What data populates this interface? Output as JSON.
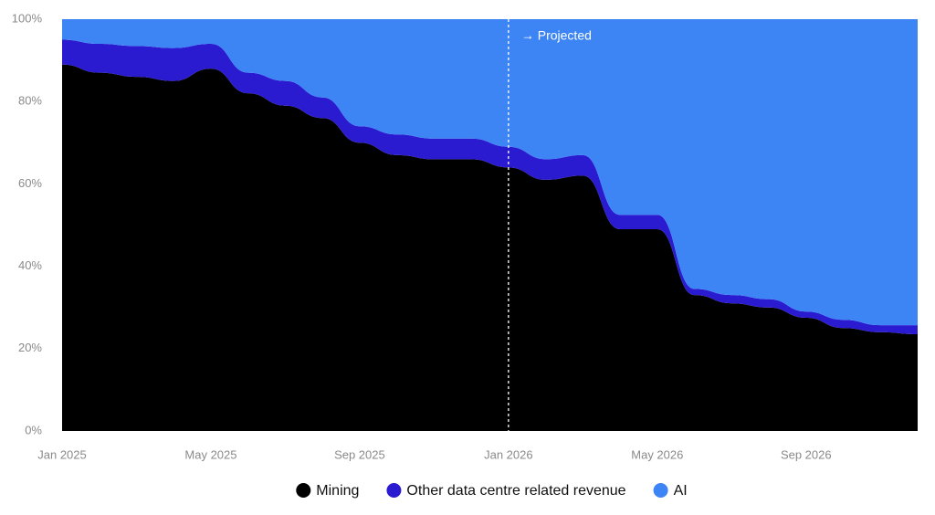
{
  "chart_data": {
    "type": "stacked_area",
    "categories": [
      "Jan 2025",
      null,
      null,
      null,
      "May 2025",
      null,
      null,
      null,
      "Sep 2025",
      null,
      null,
      null,
      "Jan 2026",
      null,
      null,
      null,
      "May 2026",
      null,
      null,
      null,
      "Sep 2026",
      null,
      null,
      null
    ],
    "series": [
      {
        "name": "Mining",
        "color": "#000000",
        "values": [
          89,
          87,
          86,
          85,
          88,
          82,
          79,
          76,
          70,
          67,
          66,
          66,
          64,
          61,
          62,
          49,
          49,
          33,
          31,
          30,
          27.5,
          25,
          24,
          23.5
        ]
      },
      {
        "name": "Other data centre related revenue",
        "color": "#2a1bd1",
        "values": [
          6,
          7,
          7.5,
          8,
          6,
          5,
          6,
          5,
          4,
          5,
          5,
          5,
          5,
          5,
          5,
          3.5,
          3.5,
          1.5,
          2,
          2,
          1.5,
          2,
          1.7,
          2.2
        ]
      },
      {
        "name": "AI",
        "color": "#3d85f5",
        "values": [
          5,
          6,
          6.5,
          7,
          6,
          13,
          15,
          19,
          26,
          28,
          29,
          29,
          31,
          34,
          33,
          47.5,
          47.5,
          65.5,
          67,
          68,
          71,
          73,
          74.3,
          74.3
        ]
      }
    ],
    "ylim": [
      0,
      100
    ],
    "yticks": [
      {
        "value": 0,
        "label": "0%"
      },
      {
        "value": 20,
        "label": "20%"
      },
      {
        "value": 40,
        "label": "40%"
      },
      {
        "value": 60,
        "label": "60%"
      },
      {
        "value": 80,
        "label": "80%"
      },
      {
        "value": 100,
        "label": "100%"
      }
    ],
    "projection": {
      "from": "Jan 2026",
      "label": "→ Projected"
    }
  }
}
